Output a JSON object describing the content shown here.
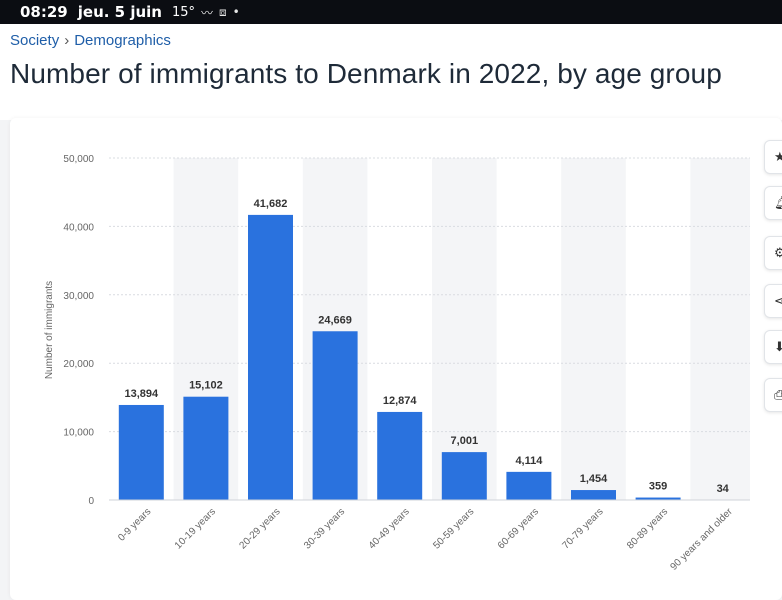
{
  "status_bar": {
    "time": "08:29",
    "date": "jeu. 5 juin",
    "temperature": "15°",
    "icons": [
      "weather-icon",
      "screen-record-icon",
      "dot-icon"
    ]
  },
  "breadcrumb": {
    "items": [
      "Society",
      "Demographics"
    ],
    "separator": "›"
  },
  "page": {
    "title": "Number of immigrants to Denmark in 2022, by age group"
  },
  "side_tools": {
    "icons": [
      "star-icon",
      "bell-icon",
      "settings-icon",
      "share-icon",
      "download-icon",
      "print-icon"
    ]
  },
  "colors": {
    "bar": "#2a72de",
    "link": "#1f5ea8",
    "title": "#1e2a38",
    "band": "#f4f5f7"
  },
  "chart_data": {
    "type": "bar",
    "categories": [
      "0-9 years",
      "10-19 years",
      "20-29 years",
      "30-39 years",
      "40-49 years",
      "50-59 years",
      "60-69 years",
      "70-79 years",
      "80-89 years",
      "90 years and older"
    ],
    "values": [
      13894,
      15102,
      41682,
      24669,
      12874,
      7001,
      4114,
      1454,
      359,
      34
    ],
    "value_labels": [
      "13,894",
      "15,102",
      "41,682",
      "24,669",
      "12,874",
      "7,001",
      "4,114",
      "1,454",
      "359",
      "34"
    ],
    "ylabel": "Number of immigrants",
    "ylim": [
      0,
      50000
    ],
    "yticks": [
      0,
      10000,
      20000,
      30000,
      40000,
      50000
    ],
    "ytick_labels": [
      "0",
      "10,000",
      "20,000",
      "30,000",
      "40,000",
      "50,000"
    ],
    "grid": true
  }
}
